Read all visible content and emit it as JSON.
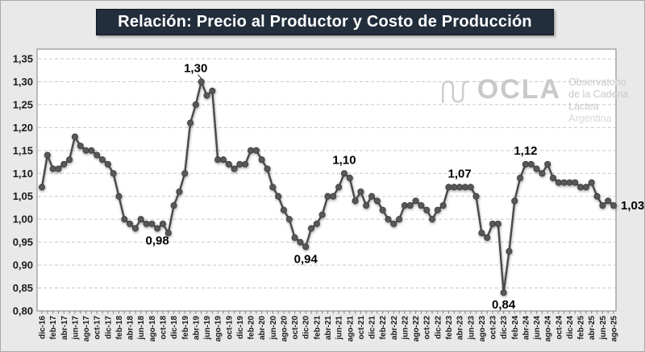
{
  "title": "Relación: Precio al Productor y Costo de Producción",
  "watermark": {
    "brand": "OCLA",
    "lines": [
      "Observatorio",
      "de la Cadena Láctea",
      "Argentina"
    ]
  },
  "chart_data": {
    "type": "line",
    "title": "Relación: Precio al Productor y Costo de Producción",
    "series_name": "Relación precio al productor / costo de producción",
    "legend": "none",
    "grid": "horizontal-dashed",
    "ylim": [
      0.8,
      1.35
    ],
    "xtick_every": 2,
    "yticks": [
      {
        "label": "1,35",
        "value": 1.35
      },
      {
        "label": "1,30",
        "value": 1.3
      },
      {
        "label": "1,25",
        "value": 1.25
      },
      {
        "label": "1,20",
        "value": 1.2
      },
      {
        "label": "1,15",
        "value": 1.15
      },
      {
        "label": "1,10",
        "value": 1.1
      },
      {
        "label": "1,05",
        "value": 1.05
      },
      {
        "label": "1,00",
        "value": 1.0
      },
      {
        "label": "0,95",
        "value": 0.95
      },
      {
        "label": "0,90",
        "value": 0.9
      },
      {
        "label": "0,85",
        "value": 0.85
      },
      {
        "label": "0,80",
        "value": 0.8
      }
    ],
    "x": [
      "dic-16",
      "ene-17",
      "feb-17",
      "mar-17",
      "abr-17",
      "may-17",
      "jun-17",
      "jul-17",
      "ago-17",
      "sep-17",
      "oct-17",
      "nov-17",
      "dic-17",
      "ene-18",
      "feb-18",
      "mar-18",
      "abr-18",
      "may-18",
      "jun-18",
      "jul-18",
      "ago-18",
      "sep-18",
      "oct-18",
      "nov-18",
      "dic-18",
      "ene-19",
      "feb-19",
      "mar-19",
      "abr-19",
      "may-19",
      "jun-19",
      "jul-19",
      "ago-19",
      "sep-19",
      "oct-19",
      "nov-19",
      "dic-19",
      "ene-20",
      "feb-20",
      "mar-20",
      "abr-20",
      "may-20",
      "jun-20",
      "jul-20",
      "ago-20",
      "sep-20",
      "oct-20",
      "nov-20",
      "dic-20",
      "ene-21",
      "feb-21",
      "mar-21",
      "abr-21",
      "may-21",
      "jun-21",
      "jul-21",
      "ago-21",
      "sep-21",
      "oct-21",
      "nov-21",
      "dic-21",
      "ene-22",
      "feb-22",
      "mar-22",
      "abr-22",
      "may-22",
      "jun-22",
      "jul-22",
      "ago-22",
      "sep-22",
      "oct-22",
      "nov-22",
      "dic-22",
      "ene-23",
      "feb-23",
      "mar-23",
      "abr-23",
      "may-23",
      "jun-23",
      "jul-23",
      "ago-23",
      "sep-23",
      "oct-23",
      "nov-23",
      "dic-23",
      "ene-24",
      "feb-24",
      "mar-24",
      "abr-24",
      "may-24",
      "jun-24",
      "jul-24",
      "ago-24",
      "sep-24",
      "oct-24",
      "nov-24",
      "dic-24",
      "ene-25",
      "feb-25",
      "mar-25",
      "abr-25",
      "may-25",
      "jun-25",
      "jul-25",
      "ago-25"
    ],
    "values": [
      1.07,
      1.14,
      1.11,
      1.11,
      1.12,
      1.13,
      1.18,
      1.16,
      1.15,
      1.15,
      1.14,
      1.13,
      1.12,
      1.1,
      1.05,
      1.0,
      0.99,
      0.98,
      1.0,
      0.99,
      0.99,
      0.98,
      0.99,
      0.97,
      1.03,
      1.06,
      1.1,
      1.21,
      1.25,
      1.3,
      1.27,
      1.28,
      1.13,
      1.13,
      1.12,
      1.11,
      1.12,
      1.12,
      1.15,
      1.15,
      1.13,
      1.11,
      1.07,
      1.05,
      1.02,
      1.0,
      0.96,
      0.95,
      0.94,
      0.98,
      0.99,
      1.01,
      1.05,
      1.05,
      1.07,
      1.1,
      1.09,
      1.04,
      1.06,
      1.03,
      1.05,
      1.04,
      1.02,
      1.0,
      0.99,
      1.0,
      1.03,
      1.03,
      1.04,
      1.03,
      1.02,
      1.0,
      1.02,
      1.03,
      1.07,
      1.07,
      1.07,
      1.07,
      1.07,
      1.05,
      0.97,
      0.96,
      0.99,
      0.99,
      0.84,
      0.93,
      1.04,
      1.09,
      1.12,
      1.12,
      1.11,
      1.1,
      1.12,
      1.09,
      1.08,
      1.08,
      1.08,
      1.08,
      1.07,
      1.07,
      1.08,
      1.05,
      1.03,
      1.04,
      1.03
    ],
    "annotations": [
      {
        "index": 21,
        "label": "0,98",
        "position": "below"
      },
      {
        "index": 29,
        "label": "1,30",
        "position": "above",
        "leader": true,
        "dx": -7
      },
      {
        "index": 48,
        "label": "0,94",
        "position": "below"
      },
      {
        "index": 55,
        "label": "1,10",
        "position": "above"
      },
      {
        "index": 76,
        "label": "1,07",
        "position": "above"
      },
      {
        "index": 84,
        "label": "0,84",
        "position": "below"
      },
      {
        "index": 88,
        "label": "1,12",
        "position": "above"
      },
      {
        "index": 104,
        "label": "1,03",
        "position": "right"
      }
    ],
    "colors": {
      "line": "#4a4a4a",
      "marker": "#585858",
      "marker_edge": "#3d3d3d",
      "grid": "#c8c8c8",
      "plot_border": "#7f7f7f",
      "plot_bg": "#ffffff",
      "page_bg": "#e9e9e9",
      "title_bg": "#232e3c",
      "title_fg": "#ffffff",
      "axis_label": "#1a1a1a",
      "annotation": "#000000",
      "watermark": "#c9c9c9"
    }
  }
}
